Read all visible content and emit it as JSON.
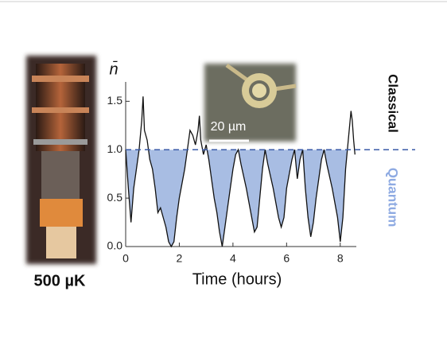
{
  "chart_data": {
    "type": "line",
    "x": [
      0,
      0.1,
      0.2,
      0.3,
      0.4,
      0.5,
      0.6,
      0.65,
      0.7,
      0.8,
      0.9,
      1.0,
      1.1,
      1.2,
      1.3,
      1.4,
      1.5,
      1.6,
      1.7,
      1.8,
      1.9,
      2.0,
      2.1,
      2.2,
      2.3,
      2.4,
      2.5,
      2.6,
      2.7,
      2.75,
      2.8,
      2.9,
      3.0,
      3.1,
      3.2,
      3.3,
      3.4,
      3.5,
      3.6,
      3.7,
      3.8,
      3.9,
      4.0,
      4.1,
      4.2,
      4.3,
      4.5,
      4.7,
      4.8,
      4.9,
      5.0,
      5.1,
      5.2,
      5.3,
      5.5,
      5.7,
      5.8,
      5.9,
      6.0,
      6.2,
      6.3,
      6.4,
      6.5,
      6.6,
      6.7,
      6.8,
      6.9,
      7.0,
      7.1,
      7.3,
      7.4,
      7.5,
      7.7,
      7.9,
      8.0,
      8.1,
      8.2,
      8.3,
      8.4,
      8.45,
      8.5,
      8.55
    ],
    "series": [
      {
        "color": "#111111",
        "fill": "#a8bde3",
        "values": [
          1.0,
          0.6,
          0.25,
          0.6,
          0.8,
          1.0,
          1.3,
          1.55,
          1.2,
          1.1,
          0.9,
          0.8,
          0.6,
          0.35,
          0.4,
          0.3,
          0.2,
          0.05,
          0.0,
          0.05,
          0.3,
          0.5,
          0.65,
          0.8,
          1.0,
          1.2,
          1.15,
          1.05,
          1.2,
          1.35,
          1.1,
          0.95,
          1.05,
          0.9,
          0.7,
          0.5,
          0.35,
          0.15,
          0.0,
          0.2,
          0.4,
          0.6,
          0.8,
          0.95,
          1.0,
          0.85,
          0.6,
          0.3,
          0.15,
          0.2,
          0.5,
          0.8,
          1.0,
          0.85,
          0.6,
          0.3,
          0.2,
          0.3,
          0.6,
          0.9,
          1.0,
          0.7,
          0.9,
          1.0,
          0.6,
          0.3,
          0.1,
          0.25,
          0.5,
          0.9,
          1.0,
          0.85,
          0.6,
          0.3,
          0.05,
          0.3,
          0.8,
          1.1,
          1.4,
          1.3,
          1.1,
          0.95
        ]
      }
    ],
    "threshold": 1.0,
    "threshold_color": "#3a5ba8",
    "xlim": [
      0,
      8.6
    ],
    "ylim": [
      0,
      1.7
    ],
    "xticks": [
      0,
      2,
      4,
      6,
      8
    ],
    "yticks": [
      {
        "value": 0,
        "label": "0.0"
      },
      {
        "value": 0.5,
        "label": "0.5"
      },
      {
        "value": 1,
        "label": "1.0"
      },
      {
        "value": 1.5,
        "label": "1.5"
      }
    ],
    "y_label": "n̄",
    "x_label": "Time (hours)",
    "annotations": {
      "upper": "Classical",
      "lower": "Quantum",
      "temperature": "500 µK",
      "scale_bar": "20 µm"
    }
  }
}
